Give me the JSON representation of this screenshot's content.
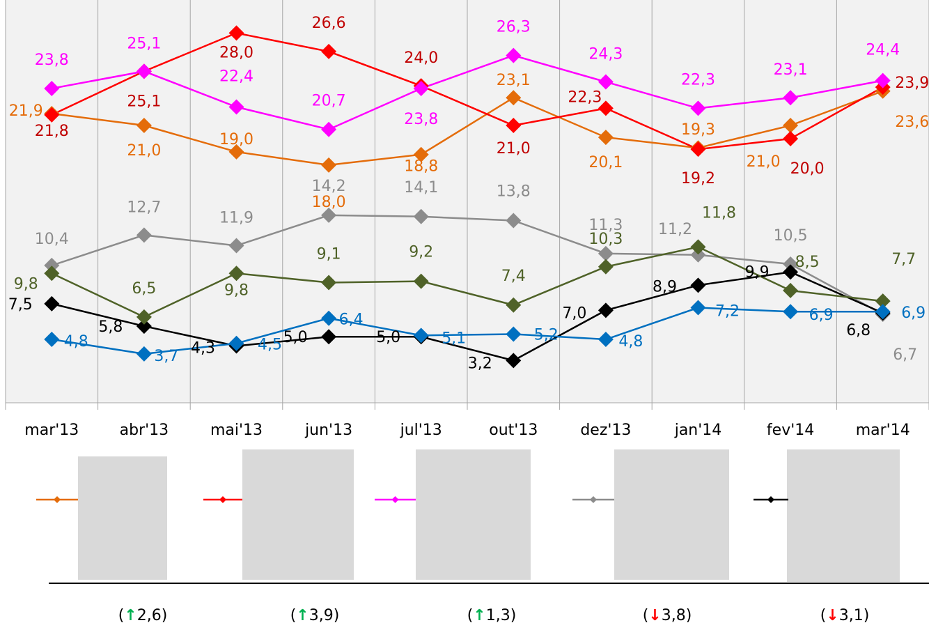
{
  "chart_data": {
    "type": "line",
    "categories": [
      "mar'13",
      "abr'13",
      "mai'13",
      "jun'13",
      "jul'13",
      "out'13",
      "dez'13",
      "jan'14",
      "fev'14",
      "mar'14"
    ],
    "ylim": [
      0,
      30.5
    ],
    "grid": "vertical",
    "series": [
      {
        "color": "#e46c0a",
        "label_color": "#e46c0a",
        "values": [
          21.9,
          21.0,
          19.0,
          18.0,
          18.8,
          23.1,
          20.1,
          19.3,
          21.0,
          23.6
        ],
        "value_labels": [
          "21,9",
          "21,0",
          "19,0",
          "18,0",
          "18,8",
          "23,1",
          "20,1",
          "19,3",
          "21,0",
          "23,6"
        ]
      },
      {
        "color": "#ff0000",
        "label_color": "#c00000",
        "values": [
          21.8,
          25.1,
          28.0,
          26.6,
          24.0,
          21.0,
          22.3,
          19.2,
          20.0,
          23.9
        ],
        "value_labels": [
          "21,8",
          "25,1",
          "28,0",
          "26,6",
          "24,0",
          "21,0",
          "22,3",
          "19,2",
          "20,0",
          "23,9"
        ]
      },
      {
        "color": "#ff00ff",
        "label_color": "#ff00ff",
        "values": [
          23.8,
          25.1,
          22.4,
          20.7,
          23.8,
          26.3,
          24.3,
          22.3,
          23.1,
          24.4
        ],
        "value_labels": [
          "23,8",
          "25,1",
          "22,4",
          "20,7",
          "23,8",
          "26,3",
          "24,3",
          "22,3",
          "23,1",
          "24,4"
        ]
      },
      {
        "color": "#8c8c8c",
        "label_color": "#8c8c8c",
        "values": [
          10.4,
          12.7,
          11.9,
          14.2,
          14.1,
          13.8,
          11.3,
          11.2,
          10.5,
          6.7
        ],
        "value_labels": [
          "10,4",
          "12,7",
          "11,9",
          "14,2",
          "14,1",
          "13,8",
          "11,3",
          "11,2",
          "10,5",
          "6,7"
        ]
      },
      {
        "color": "#000000",
        "label_color": "#000000",
        "values": [
          7.5,
          5.8,
          4.3,
          5.0,
          5.0,
          3.2,
          7.0,
          8.9,
          9.9,
          6.8
        ],
        "value_labels": [
          "7,5",
          "5,8",
          "4,3",
          "5,0",
          "5,0",
          "3,2",
          "7,0",
          "8,9",
          "9,9",
          "6,8"
        ]
      },
      {
        "color": "#4f6228",
        "label_color": "#4f6228",
        "values": [
          9.8,
          6.5,
          9.8,
          9.1,
          9.2,
          7.4,
          10.3,
          11.8,
          8.5,
          7.7
        ],
        "value_labels": [
          "9,8",
          "6,5",
          "9,8",
          "9,1",
          "9,2",
          "7,4",
          "10,3",
          "11,8",
          "8,5",
          "7,7"
        ]
      },
      {
        "color": "#0070c0",
        "label_color": "#0070c0",
        "values": [
          4.8,
          3.7,
          4.5,
          6.4,
          5.1,
          5.2,
          4.8,
          7.2,
          6.9,
          6.9
        ],
        "value_labels": [
          "4,8",
          "3,7",
          "4,5",
          "6,4",
          "5,1",
          "5,2",
          "4,8",
          "7,2",
          "6,9",
          "6,9"
        ]
      }
    ]
  },
  "changes": [
    {
      "open": "(",
      "arrow": "↑",
      "label": "2,6",
      "close": ")",
      "color": "#00b050"
    },
    {
      "open": "(",
      "arrow": "↑",
      "label": "3,9",
      "close": ")",
      "color": "#00b050"
    },
    {
      "open": "(",
      "arrow": "↑",
      "label": "1,3",
      "close": ")",
      "color": "#00b050"
    },
    {
      "open": "(",
      "arrow": "↓",
      "label": "3,8",
      "close": ")",
      "color": "#ff0000"
    },
    {
      "open": "(",
      "arrow": "↓",
      "label": "3,1",
      "close": ")",
      "color": "#ff0000"
    }
  ]
}
